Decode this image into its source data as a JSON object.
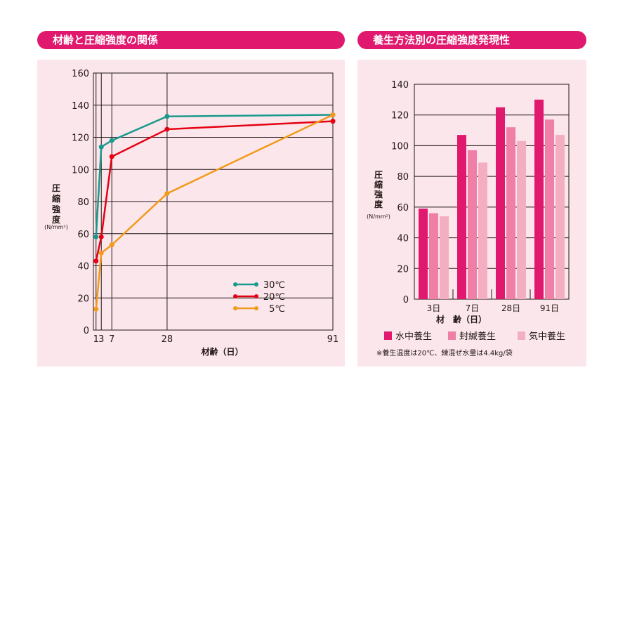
{
  "left_title": "材齢と圧縮強度の関係",
  "right_title": "養生方法別の圧縮強度発現性",
  "chart_data": [
    {
      "type": "line",
      "title": "材齢と圧縮強度の関係",
      "xlabel": "材齢（日）",
      "ylabel": "圧縮強度",
      "yunit": "(N/mm²)",
      "ylim": [
        0,
        160
      ],
      "yticks": [
        0,
        20,
        40,
        60,
        80,
        100,
        120,
        140,
        160
      ],
      "xticks": [
        1,
        3,
        7,
        28,
        91
      ],
      "x": [
        1,
        3,
        7,
        28,
        91
      ],
      "legend_position": "bottom-right",
      "series": [
        {
          "name": "30℃",
          "color": "#1a9a8c",
          "values": [
            58,
            114,
            118,
            133,
            134
          ]
        },
        {
          "name": "20℃",
          "color": "#e50012",
          "values": [
            43,
            58,
            108,
            125,
            130
          ]
        },
        {
          "name": "5℃",
          "color": "#f29a1a",
          "values": [
            13,
            48,
            53,
            85,
            134
          ]
        }
      ]
    },
    {
      "type": "bar",
      "title": "養生方法別の圧縮強度発現性",
      "xlabel": "材　齢（日）",
      "ylabel": "圧縮強度",
      "yunit": "(N/mm²)",
      "ylim": [
        0,
        140
      ],
      "yticks": [
        0,
        20,
        40,
        60,
        80,
        100,
        120,
        140
      ],
      "categories": [
        "3日",
        "7日",
        "28日",
        "91日"
      ],
      "legend_position": "bottom",
      "series": [
        {
          "name": "水中養生",
          "color": "#e0196e",
          "values": [
            59,
            107,
            125,
            130
          ]
        },
        {
          "name": "封緘養生",
          "color": "#ef7fa6",
          "values": [
            56,
            97,
            112,
            117
          ]
        },
        {
          "name": "気中養生",
          "color": "#f4aec2",
          "values": [
            54,
            89,
            103,
            107
          ]
        }
      ],
      "note": "※養生温度は20℃、練混ぜ水量は4.4kg/袋"
    }
  ]
}
